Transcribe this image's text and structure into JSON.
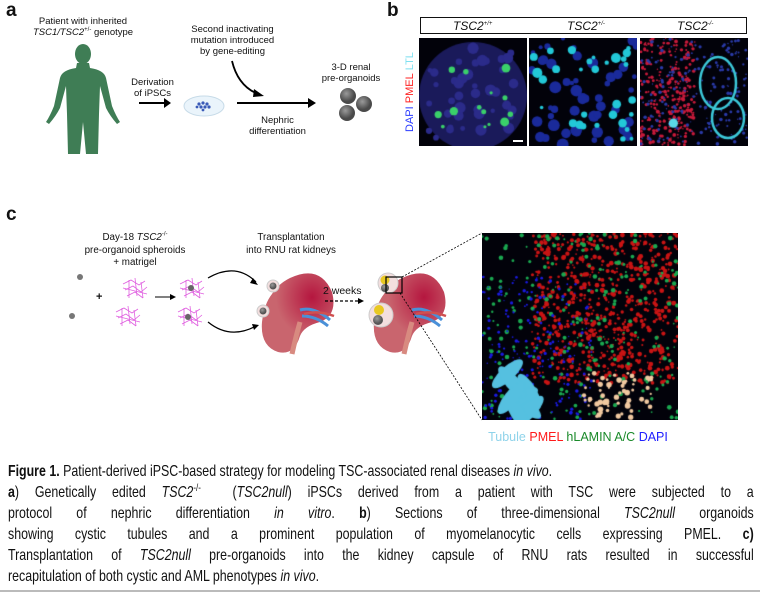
{
  "panel_a": {
    "label": "a",
    "patient_line1": "Patient with inherited",
    "patient_gene": "TSC1/TSC2",
    "patient_sup": "+/-",
    "patient_tail": " genotype",
    "derivation_line1": "Derivation",
    "derivation_line2": "of iPSCs",
    "mutation_line1": "Second inactivating",
    "mutation_line2": "mutation introduced",
    "mutation_line3": "by gene-editing",
    "nephric_line1": "Nephric",
    "nephric_line2": "differentiation",
    "organoid_line1": "3-D renal",
    "organoid_line2": "pre-organoids",
    "figure_color": "#3f7d55"
  },
  "panel_b": {
    "label": "b",
    "columns": [
      {
        "gene": "TSC2",
        "sup": "+/+"
      },
      {
        "gene": "TSC2",
        "sup": "+/-"
      },
      {
        "gene": "TSC2",
        "sup": "-/-"
      }
    ],
    "stain_labels": [
      {
        "text": "DAPI",
        "color": "#2a3bff"
      },
      {
        "text": "PMEL",
        "color": "#ff2020"
      },
      {
        "text": "LTL",
        "color": "#7fe0f0"
      }
    ]
  },
  "panel_c": {
    "label": "c",
    "day_prefix": "Day-18 ",
    "day_gene": "TSC2",
    "day_sup": "-/-",
    "spheroids_line2": "pre-organoid spheroids",
    "spheroids_line3": "+ matrigel",
    "plus": "+",
    "transplant_line1": "Transplantation",
    "transplant_line2": "into RNU rat kidneys",
    "weeks": "2 weeks",
    "legend": [
      {
        "text": "Tubule",
        "color": "#8fd3ea"
      },
      {
        "text": "PMEL",
        "color": "#ff1a1a"
      },
      {
        "text": "hLAMIN A/C",
        "color": "#1a8a2a"
      },
      {
        "text": "DAPI",
        "color": "#2020ff"
      }
    ]
  },
  "caption": {
    "l1_b": "Figure 1.",
    "l1": " Patient-derived iPSC-based strategy for modeling TSC-associated renal diseases ",
    "l1_i": "in vivo",
    "l1_end": ".",
    "l2_b": "a",
    "l2_a": ") Genetically edited ",
    "l2_i1": "TSC2",
    "l2_sup": "-/-",
    "l2_b2": "  (",
    "l2_i2": "TSC2null",
    "l2_c": ") iPSCs derived from a patient with TSC were subjected to a",
    "l3_a": "protocol of nephric differentiation ",
    "l3_i": "in vitro",
    "l3_b1": ". ",
    "l3_bb": "b",
    "l3_c": ") Sections of three-dimensional ",
    "l3_i2": "TSC2null",
    "l3_d": " organoids",
    "l4_a": "showing cystic tubules and a prominent population of myomelanocytic cells expressing PMEL. ",
    "l4_b": "c)",
    "l5_a": "Transplantation of ",
    "l5_i": "TSC2null",
    "l5_b": " pre-organoids into the kidney capsule of RNU rats resulted in successful",
    "l6_a": "recapitulation of both cystic and AML phenotypes ",
    "l6_i": "in vivo",
    "l6_end": "."
  }
}
